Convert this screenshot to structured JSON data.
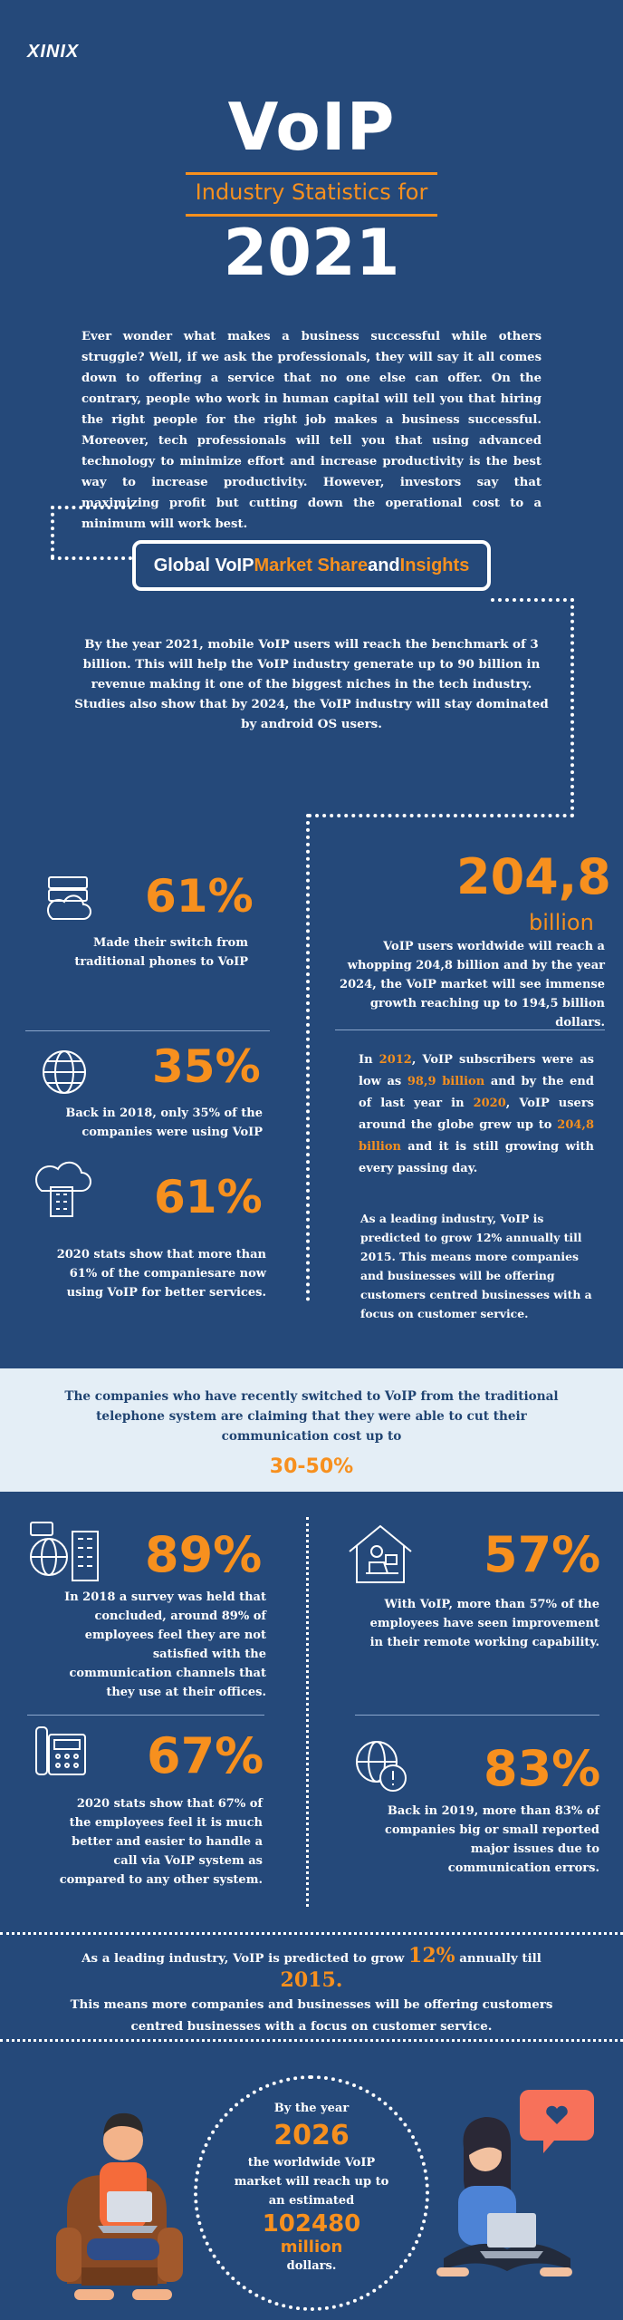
{
  "brand": {
    "logo": "XINIX"
  },
  "header": {
    "title": "VoIP",
    "subtitle": "Industry Statistics for",
    "year": "2021"
  },
  "intro": "Ever wonder what makes a business successful while others struggle? Well, if we ask the professionals, they will say it all comes down to offering a service that no one else can offer. On the contrary, people who work in human capital will tell you that hiring the right people for the right job makes a business successful. Moreover, tech professionals will tell you that using advanced technology to minimize effort and increase productivity is the best way to increase productivity. However, investors say that maximizing profit but cutting down the operational cost to a minimum will work best.",
  "section": {
    "part1": "Global VoIP ",
    "part2": "Market Share",
    "part3": " and ",
    "part4": "Insights"
  },
  "market_text": "By the year 2021, mobile VoIP users will reach the benchmark of 3 billion. This will help the VoIP industry generate up to 90 billion in revenue making it one of the biggest niches in the tech industry. Studies also show that by 2024, the VoIP industry will stay dominated by android OS users.",
  "left_stats": [
    {
      "value": "61%",
      "text": "Made their switch from traditional phones to VoIP",
      "icon": "cloud-server-icon"
    },
    {
      "value": "35%",
      "text": "Back in 2018, only 35% of the companies were using VoIP",
      "icon": "globe-icon"
    },
    {
      "value": "61%",
      "text": "2020 stats show that more than 61% of the companiesare now using VoIP for better services.",
      "icon": "cloud-building-icon"
    }
  ],
  "right_stats": {
    "big_value": "204,8",
    "big_unit": "billion",
    "big_text": "VoIP users worldwide will reach a whopping 204,8 billion and by the year 2024, the VoIP market will see immense growth reaching up to 194,5 billion dollars.",
    "subs": {
      "t1": "In ",
      "y2012": "2012",
      "t2": ", VoIP subscribers were as low as ",
      "v989": "98,9 billion",
      "t3": " and by the end of last year in ",
      "y2020": "2020",
      "t4": ", VoIP users around  the globe grew up to ",
      "v2048": "204,8 billion",
      "t5": " and it is still growing with every passing day."
    },
    "leading": "As a leading industry, VoIP is predicted to grow 12% annually till 2015. This means more companies and businesses will be offering customers centred businesses with a focus on customer service."
  },
  "band": {
    "text": "The companies who have recently switched to VoIP from the traditional telephone system are claiming that they were able to cut their communication cost up to",
    "value": "30-50%"
  },
  "grid_stats": [
    {
      "value": "89%",
      "text": "In 2018 a survey was held that concluded, around 89% of employees feel they are not  satisfied with the communication channels that they use at their offices.",
      "icon": "office-buildings-icon"
    },
    {
      "value": "57%",
      "text": "With VoIP, more than 57% of the employees have seen improvement in their remote working capability.",
      "icon": "home-office-icon"
    },
    {
      "value": "67%",
      "text": "2020 stats show that 67% of the employees feel it is much better and easier to handle a call via VoIP system as compared to any other system.",
      "icon": "desk-phone-icon"
    },
    {
      "value": "83%",
      "text": "Back in 2019, more than 83% of companies big or small reported major issues due to communication errors.",
      "icon": "globe-alert-icon"
    }
  ],
  "growth": {
    "t1": "As a leading industry, VoIP is predicted to grow ",
    "v12": "12%",
    "t2": " annually till ",
    "y2015": "2015.",
    "t3": "This means more companies and businesses will be offering customers centred businesses with a focus on customer service."
  },
  "forecast": {
    "intro": "By the year",
    "year": "2026",
    "text": "the worldwide VoIP market will reach up to an estimated",
    "value": "102480",
    "unit": "million",
    "suffix": "dollars."
  },
  "colors": {
    "background": "#25497a",
    "accent": "#f7901e",
    "band": "#e4eef6"
  }
}
